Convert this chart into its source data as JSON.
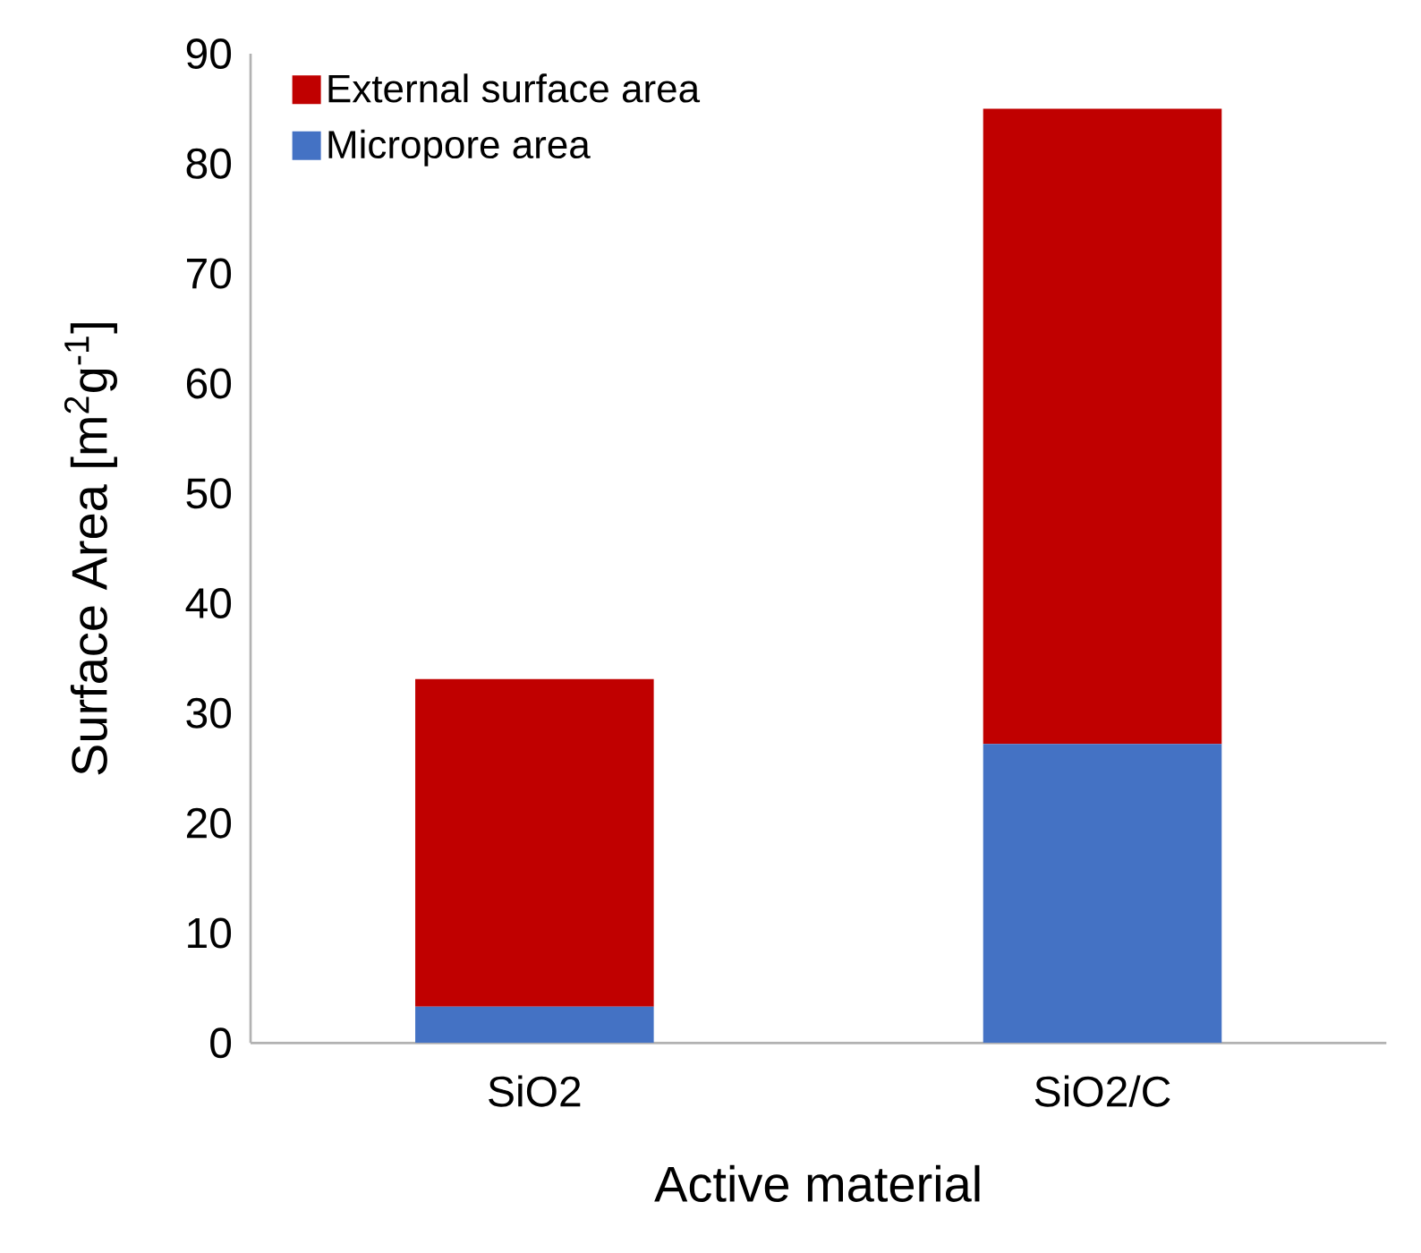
{
  "chart_data": {
    "type": "bar",
    "stacked": true,
    "xlabel": "Active material",
    "ylabel": "Surface Area [m$^{2}$g$^{-1}$]",
    "categories": [
      "SiO2",
      "SiO2/C"
    ],
    "series": [
      {
        "name": "Micropore area",
        "color": "#4472c4",
        "values": [
          3.3,
          27.2
        ]
      },
      {
        "name": "External surface area",
        "color": "#c00000",
        "values": [
          29.8,
          57.8
        ]
      }
    ],
    "ylim": [
      0,
      90
    ],
    "yticks": [
      0,
      10,
      20,
      30,
      40,
      50,
      60,
      70,
      80,
      90
    ],
    "grid": false,
    "legend": "top left"
  }
}
